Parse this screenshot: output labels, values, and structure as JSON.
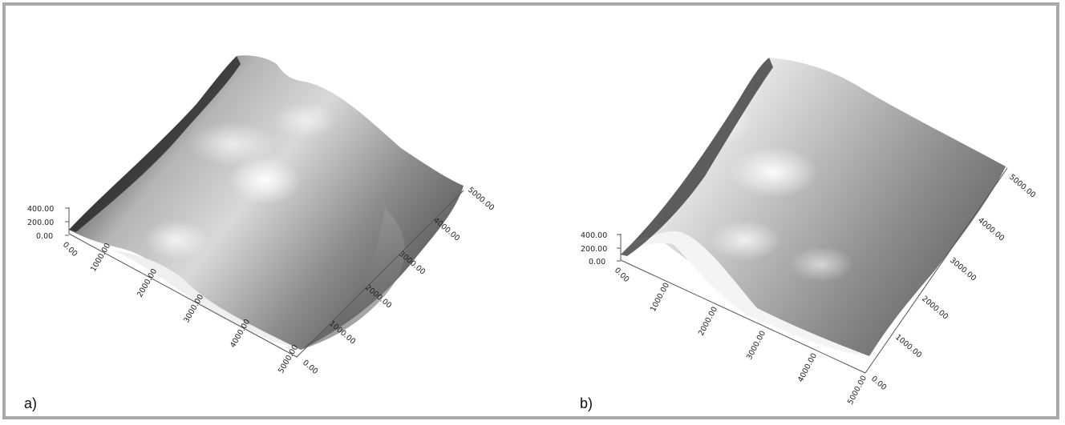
{
  "figure": {
    "panels": [
      {
        "label": "a)",
        "z_ticks": [
          "400.00",
          "200.00",
          "0.00"
        ],
        "x_ticks": [
          "0.00",
          "1000.00",
          "2000.00",
          "3000.00",
          "4000.00",
          "5000.00"
        ],
        "y_ticks": [
          "0.00",
          "1000.00",
          "2000.00",
          "3000.00",
          "4000.00",
          "5000.00"
        ]
      },
      {
        "label": "b)",
        "z_ticks": [
          "400.00",
          "200.00",
          "0.00"
        ],
        "x_ticks": [
          "0.00",
          "1000.00",
          "2000.00",
          "3000.00",
          "4000.00",
          "5000.00"
        ],
        "y_ticks": [
          "0.00",
          "1000.00",
          "2000.00",
          "3000.00",
          "4000.00",
          "5000.00"
        ]
      }
    ],
    "colors": {
      "border": "#a9a9a9",
      "surface_dark": "#2a2a2a",
      "surface_light": "#f2f2f2"
    }
  }
}
